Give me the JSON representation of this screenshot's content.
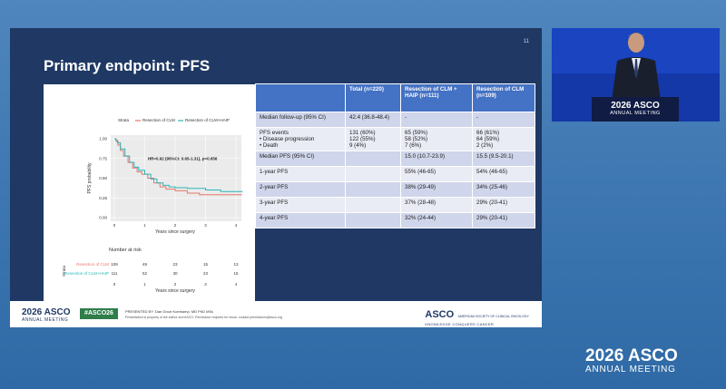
{
  "slide": {
    "number": "11",
    "title": "Primary endpoint: PFS"
  },
  "km_plot": {
    "legend_title": "Strata",
    "legend_items": [
      "Resection of CLM",
      "Resection of CLM+HAIP"
    ],
    "y_axis_label": "PFS probability",
    "y_ticks": [
      "1.00",
      "0.75",
      "0.50",
      "0.25",
      "0.00"
    ],
    "x_ticks": [
      "0",
      "1",
      "2",
      "3",
      "4"
    ],
    "x_axis_label": "Years since surgery",
    "annotation": "HR=0.92 (95%CI: 0.65-1.31), p=0.656",
    "risk_title": "Number at risk",
    "risk_y_label": "Strata",
    "risk_rows": [
      {
        "label": "Resection of CLM",
        "values": [
          "109",
          "49",
          "23",
          "15",
          "13"
        ]
      },
      {
        "label": "Resection of CLM+HAIP",
        "values": [
          "111",
          "52",
          "30",
          "23",
          "15"
        ]
      }
    ],
    "colors": {
      "clm": "#e8766b",
      "haip": "#2bb6b6"
    }
  },
  "table": {
    "headers": [
      "",
      "Total (n=220)",
      "Resection of CLM + HAIP (n=111)",
      "Resection of CLM (n=109)"
    ],
    "rows": [
      [
        "Median follow-up (95% CI)",
        "42.4 (36.8-48.4)",
        "-",
        "-"
      ],
      [
        "PFS events\n• Disease progression\n• Death",
        "131 (60%)\n122 (55%)\n9 (4%)",
        "65 (59%)\n58 (52%)\n7 (6%)",
        "66 (61%)\n64 (59%)\n2 (2%)"
      ],
      [
        "Median PFS (95% CI)",
        "",
        "15.0 (10.7-23.9)",
        "15.5 (9.5-20.1)"
      ],
      [
        "1-year PFS",
        "",
        "55% (46-65)",
        "54% (46-65)"
      ],
      [
        "2-year PFS",
        "",
        "38% (29-49)",
        "34% (25-46)"
      ],
      [
        "3-year PFS",
        "",
        "37% (28-48)",
        "29% (20-41)"
      ],
      [
        "4-year PFS",
        "",
        "32% (24-44)",
        "29% (20-41)"
      ]
    ]
  },
  "footer": {
    "logo_year": "2026 ASCO",
    "logo_sub": "ANNUAL MEETING",
    "hashtag": "#ASCO26",
    "presenter": "PRESENTED BY: Dan Groot Koerkamp, MD PhD MSc",
    "notice": "Presentation is property of the author and ASCO. Permission required for reuse; contact permissions@asco.org",
    "asco": "ASCO",
    "asco_sub": "AMERICAN SOCIETY OF CLINICAL ONCOLOGY",
    "tagline": "KNOWLEDGE CONQUERS CANCER"
  },
  "speaker": {
    "podium_year": "2026 ASCO",
    "podium_sub": "ANNUAL MEETING"
  },
  "brand": {
    "year": "2026 ASCO",
    "sub": "ANNUAL MEETING"
  }
}
